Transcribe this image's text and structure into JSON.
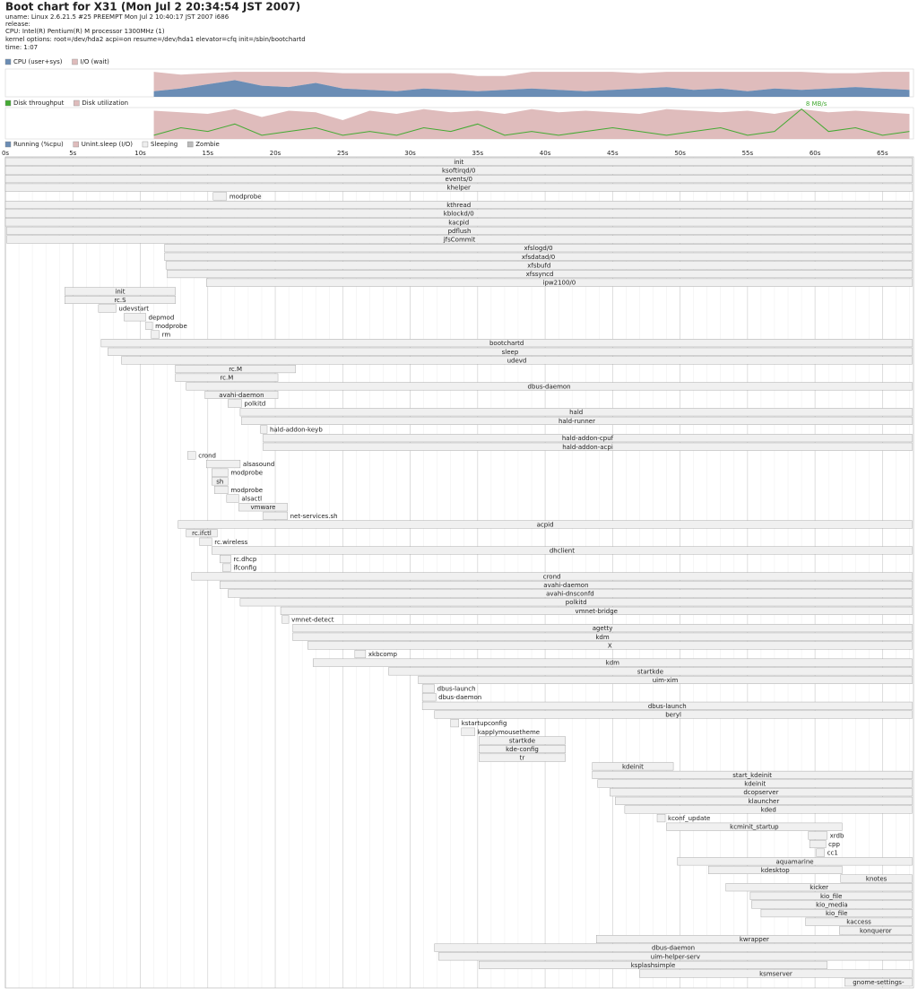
{
  "header": {
    "title": "Boot chart for X31 (Mon Jul  2 20:34:54 JST 2007)",
    "uname": "uname: Linux 2.6.21.5 #25 PREEMPT Mon Jul 2 10:40:17 JST 2007 i686",
    "release": "release:",
    "cpu": "CPU: Intel(R) Pentium(R) M processor 1300MHz (1)",
    "kernel_options": "kernel options: root=/dev/hda2 acpi=on resume=/dev/hda1 elevator=cfq init=/sbin/bootchartd",
    "time": "time: 1:07"
  },
  "cpu_chart": {
    "legend": [
      {
        "name": "CPU (user+sys)",
        "color": "#6b8db5"
      },
      {
        "name": "I/O (wait)",
        "color": "#dfbcbc"
      }
    ],
    "ylim": [
      0,
      100
    ]
  },
  "disk_chart": {
    "legend": [
      {
        "name": "Disk throughput",
        "color": "#44aa33"
      },
      {
        "name": "Disk utilization",
        "color": "#dfbcbc"
      }
    ],
    "annotation": "8 MB/s",
    "annotation_x": 60.1,
    "throughput_ylim": [
      0,
      8.4
    ],
    "util_ylim": [
      0,
      100
    ]
  },
  "samples": {
    "x": [
      11,
      13,
      15,
      17,
      19,
      21,
      23,
      25,
      27,
      29,
      31,
      33,
      35,
      37,
      39,
      41,
      43,
      45,
      47,
      49,
      51,
      53,
      55,
      57,
      59,
      61,
      63,
      65,
      67
    ],
    "cpu": [
      20,
      30,
      45,
      60,
      40,
      35,
      50,
      30,
      25,
      20,
      30,
      25,
      20,
      25,
      30,
      25,
      20,
      25,
      30,
      35,
      25,
      30,
      20,
      30,
      25,
      30,
      35,
      30,
      25
    ],
    "io": [
      70,
      50,
      40,
      30,
      50,
      55,
      40,
      55,
      60,
      65,
      55,
      60,
      55,
      50,
      60,
      65,
      70,
      65,
      55,
      55,
      65,
      60,
      70,
      60,
      65,
      55,
      50,
      60,
      65
    ],
    "disk_util": [
      90,
      85,
      80,
      95,
      70,
      90,
      85,
      60,
      90,
      80,
      95,
      85,
      90,
      80,
      95,
      85,
      90,
      85,
      80,
      95,
      90,
      85,
      90,
      80,
      95,
      85,
      90,
      85,
      80
    ],
    "throughput": [
      1,
      3,
      2,
      4,
      1,
      2,
      3,
      1,
      2,
      1,
      3,
      2,
      4,
      1,
      2,
      1,
      2,
      3,
      2,
      1,
      2,
      3,
      1,
      2,
      8,
      2,
      3,
      1,
      2
    ]
  },
  "process_legend": [
    {
      "name": "Running (%cpu)",
      "color": "#6b8db5"
    },
    {
      "name": "Unint.sleep (I/O)",
      "color": "#dfbcbc"
    },
    {
      "name": "Sleeping",
      "color": "#eeeeee"
    },
    {
      "name": "Zombie",
      "color": "#bbbbbb"
    }
  ],
  "xlim": [
    0,
    67.3
  ],
  "xticks": [
    {
      "value": 0,
      "label": "0s"
    },
    {
      "value": 5,
      "label": "5s"
    },
    {
      "value": 10,
      "label": "10s"
    },
    {
      "value": 15,
      "label": "15s"
    },
    {
      "value": 20,
      "label": "20s"
    },
    {
      "value": 25,
      "label": "25s"
    },
    {
      "value": 30,
      "label": "30s"
    },
    {
      "value": 35,
      "label": "35s"
    },
    {
      "value": 40,
      "label": "40s"
    },
    {
      "value": 45,
      "label": "45s"
    },
    {
      "value": 50,
      "label": "50s"
    },
    {
      "value": 55,
      "label": "55s"
    },
    {
      "value": 60,
      "label": "60s"
    },
    {
      "value": 65,
      "label": "65s"
    }
  ],
  "processes": [
    {
      "name": "init",
      "start": 0,
      "end": 67.2
    },
    {
      "name": "ksoftirqd/0",
      "start": 0,
      "end": 67.2
    },
    {
      "name": "events/0",
      "start": 0,
      "end": 67.2
    },
    {
      "name": "khelper",
      "start": 0,
      "end": 67.2
    },
    {
      "name": "modprobe",
      "start": 15.4,
      "end": 16.4
    },
    {
      "name": "kthread",
      "start": 0,
      "end": 67.2
    },
    {
      "name": "kblockd/0",
      "start": 0,
      "end": 67.2
    },
    {
      "name": "kacpid",
      "start": 0,
      "end": 67.2
    },
    {
      "name": "pdflush",
      "start": 0.1,
      "end": 67.2
    },
    {
      "name": "jfsCommit",
      "start": 0.1,
      "end": 67.2
    },
    {
      "name": "xfslogd/0",
      "start": 11.8,
      "end": 67.2
    },
    {
      "name": "xfsdatad/0",
      "start": 11.8,
      "end": 67.2
    },
    {
      "name": "xfsbufd",
      "start": 11.9,
      "end": 67.2
    },
    {
      "name": "xfssyncd",
      "start": 12.0,
      "end": 67.2
    },
    {
      "name": "ipw2100/0",
      "start": 14.9,
      "end": 67.2
    },
    {
      "name": "init",
      "start": 4.4,
      "end": 12.6
    },
    {
      "name": "rc.S",
      "start": 4.4,
      "end": 12.6
    },
    {
      "name": "udevstart",
      "start": 6.9,
      "end": 8.2
    },
    {
      "name": "depmod",
      "start": 8.8,
      "end": 10.4
    },
    {
      "name": "modprobe",
      "start": 10.4,
      "end": 10.9
    },
    {
      "name": "rm",
      "start": 10.8,
      "end": 11.4
    },
    {
      "name": "bootchartd",
      "start": 7.1,
      "end": 67.2
    },
    {
      "name": "sleep",
      "start": 7.6,
      "end": 67.2
    },
    {
      "name": "udevd",
      "start": 8.6,
      "end": 67.2
    },
    {
      "name": "rc.M",
      "start": 12.6,
      "end": 21.5
    },
    {
      "name": "rc.M",
      "start": 12.6,
      "end": 20.2
    },
    {
      "name": "dbus-daemon",
      "start": 13.4,
      "end": 67.2
    },
    {
      "name": "avahi-daemon",
      "start": 14.8,
      "end": 20.2
    },
    {
      "name": "polkitd",
      "start": 16.5,
      "end": 17.5
    },
    {
      "name": "hald",
      "start": 17.4,
      "end": 67.2
    },
    {
      "name": "hald-runner",
      "start": 17.5,
      "end": 67.2
    },
    {
      "name": "hald-addon-keyb",
      "start": 18.9,
      "end": 19.4
    },
    {
      "name": "hald-addon-cpuf",
      "start": 19.1,
      "end": 67.2
    },
    {
      "name": "hald-addon-acpi",
      "start": 19.1,
      "end": 67.2
    },
    {
      "name": "crond",
      "start": 13.5,
      "end": 14.1
    },
    {
      "name": "alsasound",
      "start": 14.9,
      "end": 17.4
    },
    {
      "name": "modprobe",
      "start": 15.3,
      "end": 16.5
    },
    {
      "name": "sh",
      "start": 15.3,
      "end": 16.5
    },
    {
      "name": "modprobe",
      "start": 15.5,
      "end": 16.5
    },
    {
      "name": "alsactl",
      "start": 16.4,
      "end": 17.3
    },
    {
      "name": "vmware",
      "start": 17.3,
      "end": 20.9
    },
    {
      "name": "net-services.sh",
      "start": 19.1,
      "end": 20.9
    },
    {
      "name": "acpid",
      "start": 12.8,
      "end": 67.2
    },
    {
      "name": "rc.ifctl",
      "start": 13.4,
      "end": 15.7
    },
    {
      "name": "rc.wireless",
      "start": 14.4,
      "end": 15.3
    },
    {
      "name": "dhclient",
      "start": 15.3,
      "end": 67.2
    },
    {
      "name": "rc.dhcp",
      "start": 15.9,
      "end": 16.7
    },
    {
      "name": "ifconfig",
      "start": 16.1,
      "end": 16.7
    },
    {
      "name": "crond",
      "start": 13.8,
      "end": 67.2
    },
    {
      "name": "avahi-daemon",
      "start": 15.9,
      "end": 67.2
    },
    {
      "name": "avahi-dnsconfd",
      "start": 16.5,
      "end": 67.2
    },
    {
      "name": "polkitd",
      "start": 17.4,
      "end": 67.2
    },
    {
      "name": "vmnet-bridge",
      "start": 20.4,
      "end": 67.2
    },
    {
      "name": "vmnet-detect",
      "start": 20.5,
      "end": 21.0
    },
    {
      "name": "agetty",
      "start": 21.3,
      "end": 67.2
    },
    {
      "name": "kdm",
      "start": 21.3,
      "end": 67.2
    },
    {
      "name": "X",
      "start": 22.4,
      "end": 67.2
    },
    {
      "name": "xkbcomp",
      "start": 25.9,
      "end": 26.7
    },
    {
      "name": "kdm",
      "start": 22.8,
      "end": 67.2
    },
    {
      "name": "startkde",
      "start": 28.4,
      "end": 67.2
    },
    {
      "name": "uim-xim",
      "start": 30.6,
      "end": 67.2
    },
    {
      "name": "dbus-launch",
      "start": 30.9,
      "end": 31.8
    },
    {
      "name": "dbus-daemon",
      "start": 30.9,
      "end": 31.9
    },
    {
      "name": "dbus-launch",
      "start": 30.9,
      "end": 67.2
    },
    {
      "name": "beryl",
      "start": 31.8,
      "end": 67.2
    },
    {
      "name": "kstartupconfig",
      "start": 33.0,
      "end": 33.6
    },
    {
      "name": "kapplymousetheme",
      "start": 33.8,
      "end": 34.8
    },
    {
      "name": "startkde",
      "start": 35.1,
      "end": 41.5
    },
    {
      "name": "kde-config",
      "start": 35.1,
      "end": 41.5
    },
    {
      "name": "tr",
      "start": 35.1,
      "end": 41.5
    },
    {
      "name": "kdeinit",
      "start": 43.5,
      "end": 49.5
    },
    {
      "name": "start_kdeinit",
      "start": 43.5,
      "end": 67.2
    },
    {
      "name": "kdeinit",
      "start": 43.9,
      "end": 67.2
    },
    {
      "name": "dcopserver",
      "start": 44.8,
      "end": 67.2
    },
    {
      "name": "klauncher",
      "start": 45.2,
      "end": 67.2
    },
    {
      "name": "kded",
      "start": 45.9,
      "end": 67.2
    },
    {
      "name": "kconf_update",
      "start": 48.3,
      "end": 48.9
    },
    {
      "name": "kcminit_startup",
      "start": 49.0,
      "end": 62.0
    },
    {
      "name": "xrdb",
      "start": 59.5,
      "end": 60.9
    },
    {
      "name": "cpp",
      "start": 59.6,
      "end": 60.8
    },
    {
      "name": "cc1",
      "start": 60.1,
      "end": 60.7
    },
    {
      "name": "aquamarine",
      "start": 49.8,
      "end": 67.2
    },
    {
      "name": "kdesktop",
      "start": 52.1,
      "end": 62.0
    },
    {
      "name": "knotes",
      "start": 61.9,
      "end": 67.2
    },
    {
      "name": "kicker",
      "start": 53.4,
      "end": 67.2
    },
    {
      "name": "kio_file",
      "start": 55.2,
      "end": 67.2
    },
    {
      "name": "kio_media",
      "start": 55.3,
      "end": 67.2
    },
    {
      "name": "kio_file",
      "start": 56.0,
      "end": 67.2
    },
    {
      "name": "kaccess",
      "start": 59.3,
      "end": 67.2
    },
    {
      "name": "konqueror",
      "start": 61.8,
      "end": 67.2
    },
    {
      "name": "kwrapper",
      "start": 43.8,
      "end": 67.2
    },
    {
      "name": "dbus-daemon",
      "start": 31.8,
      "end": 67.2
    },
    {
      "name": "uim-helper-serv",
      "start": 32.1,
      "end": 67.2
    },
    {
      "name": "ksplashsimple",
      "start": 35.1,
      "end": 60.9
    },
    {
      "name": "ksmserver",
      "start": 47.0,
      "end": 67.2
    },
    {
      "name": "gnome-settings-",
      "start": 62.2,
      "end": 67.2
    }
  ]
}
